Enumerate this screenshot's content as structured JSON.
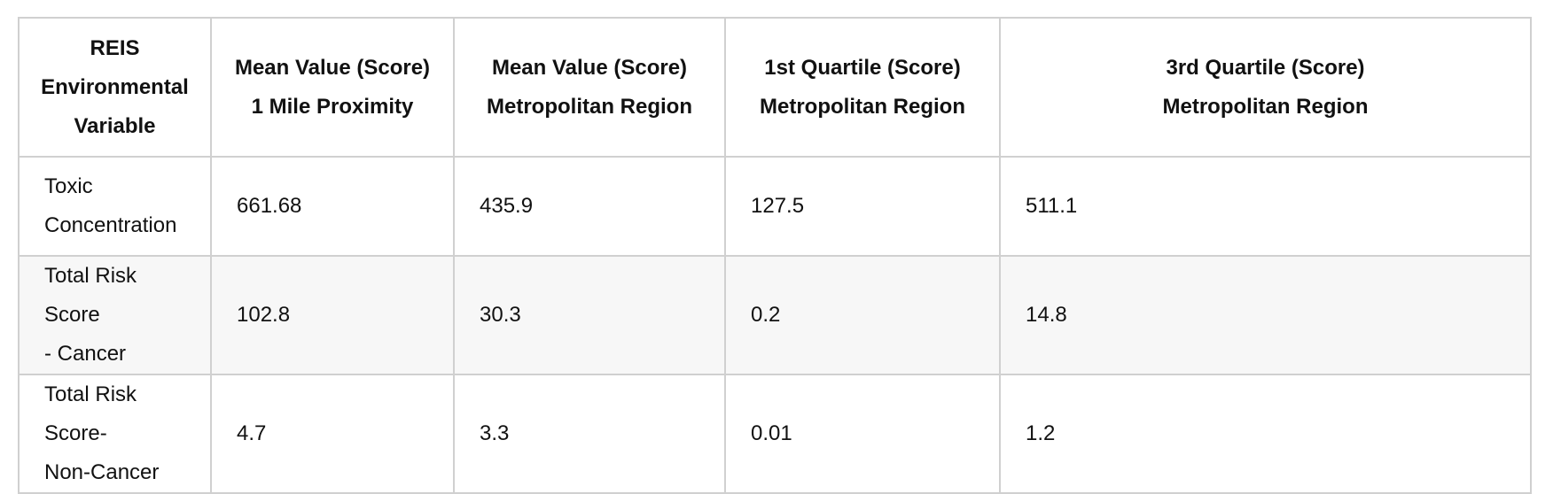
{
  "table": {
    "headers": [
      [
        "REIS",
        "Environmental",
        "Variable"
      ],
      [
        "Mean Value (Score)",
        "1 Mile Proximity"
      ],
      [
        "Mean Value (Score)",
        "Metropolitan Region"
      ],
      [
        "1st Quartile (Score)",
        "Metropolitan Region"
      ],
      [
        "3rd Quartile (Score)",
        "Metropolitan Region"
      ]
    ],
    "rows": [
      {
        "variable": [
          "Toxic",
          "Concentration"
        ],
        "values": [
          "661.68",
          "435.9",
          "127.5",
          "511.1"
        ]
      },
      {
        "variable": [
          "Total Risk Score",
          "- Cancer"
        ],
        "values": [
          "102.8",
          "30.3",
          "0.2",
          "14.8"
        ]
      },
      {
        "variable": [
          "Total Risk Score-",
          "Non-Cancer"
        ],
        "values": [
          "4.7",
          "3.3",
          "0.01",
          "1.2"
        ]
      }
    ]
  }
}
